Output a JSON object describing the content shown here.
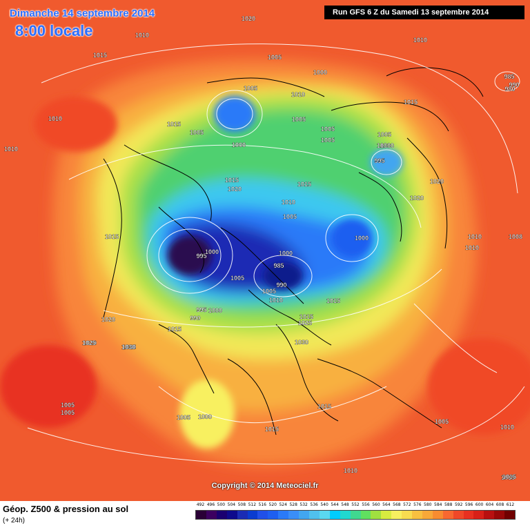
{
  "header": {
    "date": "Dimanche 14 septembre 2014",
    "time": "8:00 locale",
    "run": "Run GFS 6 Z du Samedi 13 septembre 2014"
  },
  "footer": {
    "field": "Géop. Z500 & pression au sol",
    "lead": "(+ 24h)",
    "copyright": "Copyright © 2014 Meteociel.fr"
  },
  "colorscale": {
    "values": [
      "492",
      "496",
      "500",
      "504",
      "508",
      "512",
      "516",
      "520",
      "524",
      "528",
      "532",
      "536",
      "540",
      "544",
      "548",
      "552",
      "556",
      "560",
      "564",
      "568",
      "572",
      "576",
      "580",
      "584",
      "588",
      "592",
      "596",
      "600",
      "604",
      "608",
      "612"
    ],
    "colors": [
      "#2a0036",
      "#3c0060",
      "#1a0070",
      "#0e0a8c",
      "#1a2cb4",
      "#0a3cd0",
      "#2050e8",
      "#1e5ff0",
      "#2a7af8",
      "#3a8ef8",
      "#42a6f0",
      "#50c0ee",
      "#5ad8f0",
      "#00ccff",
      "#20d8d0",
      "#40d890",
      "#60e060",
      "#a0e040",
      "#d8ec40",
      "#f8f060",
      "#f8dc50",
      "#f8c040",
      "#f8a838",
      "#f88c30",
      "#f86830",
      "#f04828",
      "#e83020",
      "#d82018",
      "#b81010",
      "#980808",
      "#700000"
    ]
  },
  "isobars": [
    {
      "text": "1020"
    },
    {
      "text": "1010"
    },
    {
      "text": "1015"
    },
    {
      "text": "1005"
    },
    {
      "text": "1000"
    },
    {
      "text": "1010"
    },
    {
      "text": "1015"
    },
    {
      "text": "1010"
    },
    {
      "text": "985"
    },
    {
      "text": "990"
    },
    {
      "text": "980"
    },
    {
      "text": "1005"
    },
    {
      "text": "1015"
    },
    {
      "text": "1010"
    },
    {
      "text": "1005"
    },
    {
      "text": "1005"
    },
    {
      "text": "1005"
    },
    {
      "text": "1005"
    },
    {
      "text": "1000"
    },
    {
      "text": "1005"
    },
    {
      "text": "1000"
    },
    {
      "text": "995"
    },
    {
      "text": "1015"
    },
    {
      "text": "1020"
    },
    {
      "text": "1015"
    },
    {
      "text": "1020"
    },
    {
      "text": "1010"
    },
    {
      "text": "1005"
    },
    {
      "text": "1000"
    },
    {
      "text": "1020"
    },
    {
      "text": "1010"
    },
    {
      "text": "1015"
    },
    {
      "text": "995"
    },
    {
      "text": "1000"
    },
    {
      "text": "1000"
    },
    {
      "text": "985"
    },
    {
      "text": "990"
    },
    {
      "text": "1005"
    },
    {
      "text": "1005"
    },
    {
      "text": "1010"
    },
    {
      "text": "995"
    },
    {
      "text": "990"
    },
    {
      "text": "1000"
    },
    {
      "text": "1015"
    },
    {
      "text": "1020"
    },
    {
      "text": "1025"
    },
    {
      "text": "1015"
    },
    {
      "text": "1015"
    },
    {
      "text": "1020"
    },
    {
      "text": "1025"
    },
    {
      "text": "1030"
    },
    {
      "text": "1025"
    },
    {
      "text": "1030"
    },
    {
      "text": "1005"
    },
    {
      "text": "1005"
    },
    {
      "text": "1000"
    },
    {
      "text": "1015"
    },
    {
      "text": "1015"
    },
    {
      "text": "1005"
    },
    {
      "text": "1010"
    },
    {
      "text": "1010"
    },
    {
      "text": "1015"
    },
    {
      "text": "1010"
    },
    {
      "text": "1008"
    },
    {
      "text": "1010"
    },
    {
      "text": "1000"
    },
    {
      "text": "995"
    },
    {
      "text": "1005"
    },
    {
      "text": "1015"
    },
    {
      "text": "1030"
    }
  ]
}
